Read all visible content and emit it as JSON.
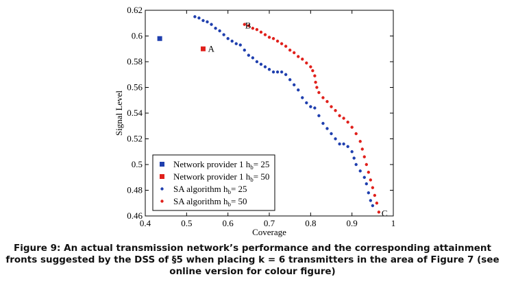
{
  "chart_data": {
    "type": "scatter",
    "xlabel": "Coverage",
    "ylabel": "Signal Level",
    "xlim": [
      0.4,
      1.0
    ],
    "ylim": [
      0.46,
      0.62
    ],
    "xticks": [
      "0.4",
      "0.5",
      "0.6",
      "0.7",
      "0.8",
      "0.9",
      "1"
    ],
    "yticks": [
      "0.46",
      "0.48",
      "0.5",
      "0.52",
      "0.54",
      "0.56",
      "0.58",
      "0.6",
      "0.62"
    ],
    "colors": {
      "blue": "#1f3fae",
      "red": "#e0201b"
    },
    "series": [
      {
        "name": "Network provider 1",
        "subscript_label": "h_b = 25",
        "marker": "square",
        "color": "#1f3fae",
        "points": [
          [
            0.435,
            0.598
          ]
        ]
      },
      {
        "name": "Network provider 1",
        "subscript_label": "h_b = 50",
        "marker": "square",
        "color": "#e0201b",
        "points": [
          [
            0.54,
            0.59
          ]
        ]
      },
      {
        "name": "SA algorithm",
        "subscript_label": "h_b = 25",
        "marker": "dot",
        "color": "#1f3fae",
        "points": [
          [
            0.52,
            0.615
          ],
          [
            0.53,
            0.614
          ],
          [
            0.54,
            0.612
          ],
          [
            0.55,
            0.611
          ],
          [
            0.56,
            0.609
          ],
          [
            0.57,
            0.606
          ],
          [
            0.58,
            0.604
          ],
          [
            0.59,
            0.601
          ],
          [
            0.6,
            0.598
          ],
          [
            0.61,
            0.596
          ],
          [
            0.62,
            0.594
          ],
          [
            0.63,
            0.593
          ],
          [
            0.64,
            0.589
          ],
          [
            0.65,
            0.585
          ],
          [
            0.66,
            0.583
          ],
          [
            0.67,
            0.58
          ],
          [
            0.68,
            0.578
          ],
          [
            0.69,
            0.576
          ],
          [
            0.7,
            0.574
          ],
          [
            0.71,
            0.572
          ],
          [
            0.72,
            0.572
          ],
          [
            0.73,
            0.572
          ],
          [
            0.74,
            0.57
          ],
          [
            0.75,
            0.566
          ],
          [
            0.76,
            0.562
          ],
          [
            0.77,
            0.558
          ],
          [
            0.78,
            0.552
          ],
          [
            0.79,
            0.548
          ],
          [
            0.8,
            0.545
          ],
          [
            0.81,
            0.544
          ],
          [
            0.82,
            0.538
          ],
          [
            0.83,
            0.532
          ],
          [
            0.84,
            0.528
          ],
          [
            0.85,
            0.524
          ],
          [
            0.86,
            0.52
          ],
          [
            0.87,
            0.516
          ],
          [
            0.88,
            0.516
          ],
          [
            0.89,
            0.514
          ],
          [
            0.9,
            0.51
          ],
          [
            0.905,
            0.505
          ],
          [
            0.91,
            0.5
          ],
          [
            0.92,
            0.495
          ],
          [
            0.93,
            0.49
          ],
          [
            0.935,
            0.485
          ],
          [
            0.94,
            0.478
          ],
          [
            0.945,
            0.472
          ],
          [
            0.95,
            0.468
          ]
        ]
      },
      {
        "name": "SA algorithm",
        "subscript_label": "h_b = 50",
        "marker": "dot",
        "color": "#e0201b",
        "points": [
          [
            0.64,
            0.609
          ],
          [
            0.65,
            0.608
          ],
          [
            0.66,
            0.606
          ],
          [
            0.67,
            0.605
          ],
          [
            0.68,
            0.603
          ],
          [
            0.69,
            0.601
          ],
          [
            0.7,
            0.599
          ],
          [
            0.71,
            0.598
          ],
          [
            0.72,
            0.596
          ],
          [
            0.73,
            0.594
          ],
          [
            0.74,
            0.592
          ],
          [
            0.75,
            0.589
          ],
          [
            0.76,
            0.587
          ],
          [
            0.77,
            0.584
          ],
          [
            0.78,
            0.582
          ],
          [
            0.79,
            0.579
          ],
          [
            0.8,
            0.576
          ],
          [
            0.805,
            0.573
          ],
          [
            0.81,
            0.569
          ],
          [
            0.812,
            0.564
          ],
          [
            0.815,
            0.56
          ],
          [
            0.82,
            0.556
          ],
          [
            0.83,
            0.552
          ],
          [
            0.84,
            0.549
          ],
          [
            0.85,
            0.545
          ],
          [
            0.86,
            0.542
          ],
          [
            0.87,
            0.538
          ],
          [
            0.88,
            0.536
          ],
          [
            0.89,
            0.533
          ],
          [
            0.9,
            0.529
          ],
          [
            0.91,
            0.524
          ],
          [
            0.92,
            0.518
          ],
          [
            0.925,
            0.512
          ],
          [
            0.93,
            0.506
          ],
          [
            0.935,
            0.5
          ],
          [
            0.94,
            0.494
          ],
          [
            0.945,
            0.488
          ],
          [
            0.95,
            0.482
          ],
          [
            0.955,
            0.476
          ],
          [
            0.96,
            0.47
          ],
          [
            0.965,
            0.463
          ]
        ]
      }
    ],
    "annotations": [
      {
        "text": "A",
        "x": 0.545,
        "y": 0.59
      },
      {
        "text": "B",
        "x": 0.635,
        "y": 0.608
      },
      {
        "text": "C",
        "x": 0.965,
        "y": 0.462
      }
    ],
    "legend": {
      "position": "bottom-left",
      "entries": [
        {
          "prefix": "Network provider 1 h",
          "sub": "b",
          "suffix": "= 25"
        },
        {
          "prefix": "Network provider 1 h",
          "sub": "b",
          "suffix": "= 50"
        },
        {
          "prefix": "SA algorithm h",
          "sub": "b",
          "suffix": "= 25"
        },
        {
          "prefix": "SA algorithm h",
          "sub": "b",
          "suffix": "= 50"
        }
      ]
    }
  },
  "caption": {
    "line1": "Figure 9: An actual transmission network’s performance and the corresponding attainment",
    "line2": "fronts suggested by the DSS of §5 when placing k = 6 transmitters in the area of Figure 7 (see",
    "line3": "online version for colour figure)"
  }
}
